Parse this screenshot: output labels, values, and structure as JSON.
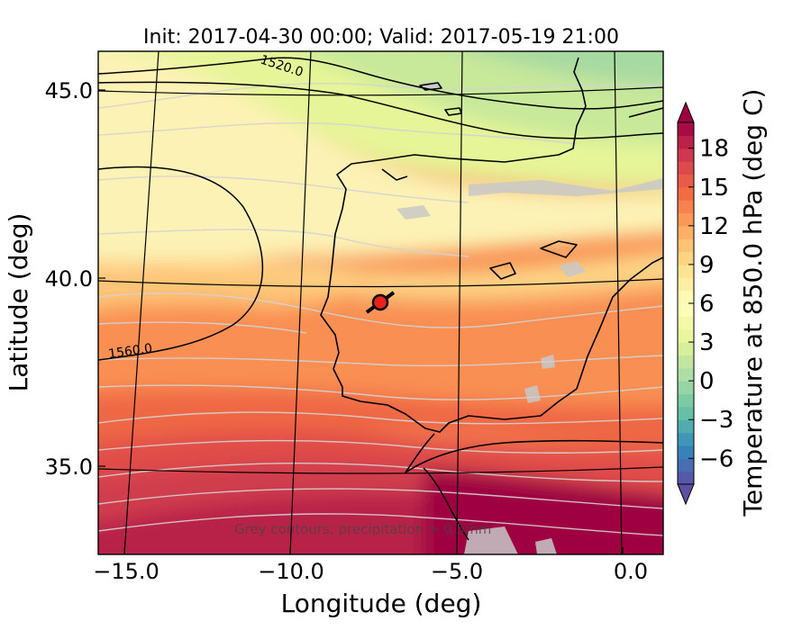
{
  "chart_data": {
    "type": "heatmap",
    "title": "Init: 2017-04-30 00:00; Valid: 2017-05-19 21:00",
    "xlabel": "Longitude (deg)",
    "ylabel": "Latitude (deg)",
    "xlim": [
      -16,
      0.2
    ],
    "ylim": [
      32.6,
      46
    ],
    "x_ticks": [
      -15.0,
      -10.0,
      -5.0,
      0.0
    ],
    "x_tick_labels": [
      "−15.0",
      "−10.0",
      "−5.0",
      "0.0"
    ],
    "y_ticks": [
      35.0,
      40.0,
      45.0
    ],
    "y_tick_labels": [
      "35.0",
      "40.0",
      "45.0"
    ],
    "colorbar": {
      "label": "Temperature at 850.0 hPa (deg C)",
      "min": -8,
      "max": 20,
      "levels": [
        -8,
        -7,
        -6,
        -5,
        -4,
        -3,
        -2,
        -1,
        0,
        1,
        2,
        3,
        4,
        5,
        6,
        7,
        8,
        9,
        10,
        11,
        12,
        13,
        14,
        15,
        16,
        17,
        18,
        19,
        20
      ],
      "ticks": [
        -6,
        -3,
        0,
        3,
        6,
        9,
        12,
        15,
        18
      ],
      "tick_labels": [
        "−6",
        "−3",
        "0",
        "3",
        "6",
        "9",
        "12",
        "15",
        "18"
      ],
      "extend": "both",
      "colormap": "Spectral_r"
    },
    "contours": [
      {
        "value": 1520.0,
        "label": "1520.0"
      },
      {
        "value": 1560.0,
        "label": "1560.0"
      }
    ],
    "marker": {
      "lon": -7.7,
      "lat": 39.35,
      "color": "#e8231c"
    },
    "note": "Grey contours: precipitation > 0.5mm"
  }
}
